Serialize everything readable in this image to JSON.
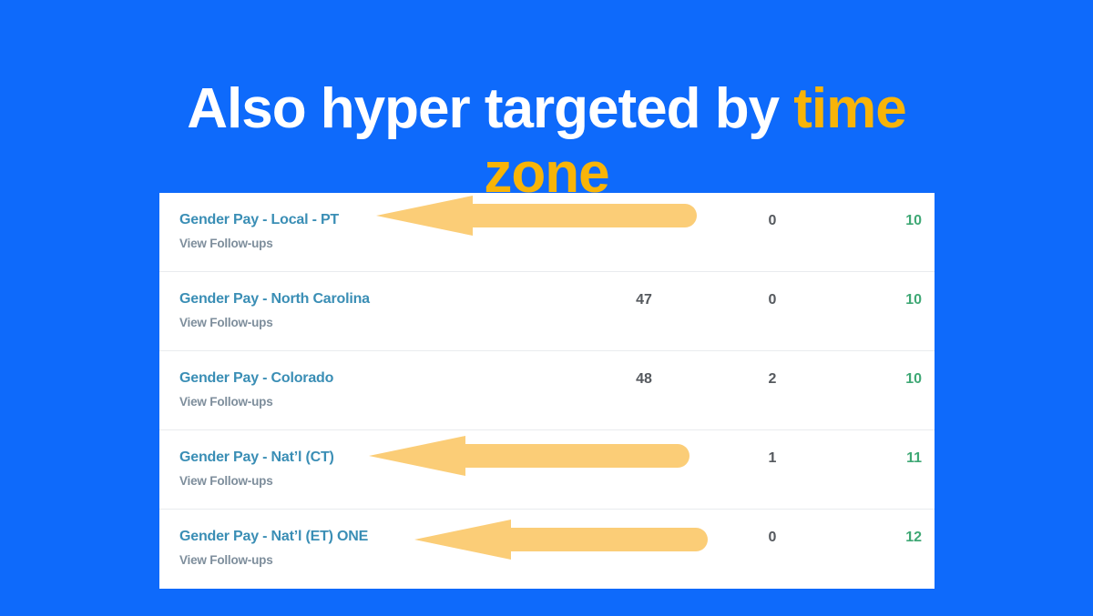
{
  "title": {
    "white": "Also hyper targeted by",
    "accent1": "time",
    "accent2": "zone"
  },
  "table": {
    "rows": [
      {
        "name": "Gender Pay - Local - PT",
        "sublink": "View Follow-ups",
        "col1": "",
        "col2": "0",
        "col3": "10",
        "arrow": true
      },
      {
        "name": "Gender Pay - North Carolina",
        "sublink": "View Follow-ups",
        "col1": "47",
        "col2": "0",
        "col3": "10",
        "arrow": false
      },
      {
        "name": "Gender Pay - Colorado",
        "sublink": "View Follow-ups",
        "col1": "48",
        "col2": "2",
        "col3": "10",
        "arrow": false
      },
      {
        "name": "Gender Pay - Nat’l (CT)",
        "sublink": "View Follow-ups",
        "col1": "",
        "col2": "1",
        "col3": "11",
        "arrow": true
      },
      {
        "name": "Gender Pay - Nat’l (ET) ONE",
        "sublink": "View Follow-ups",
        "col1": "",
        "col2": "0",
        "col3": "12",
        "arrow": true
      }
    ]
  },
  "icons": {
    "arrow": "left-arrow-annotation"
  },
  "colors": {
    "background": "#0e6afb",
    "title_text": "#ffffff",
    "accent_yellow": "#f8b408",
    "arrow_yellow": "#fbcd77",
    "panel_white": "#ffffff",
    "separator_gray": "#e9ebee",
    "link_teal": "#3a8eb5",
    "muted_gray": "#7e8e9c",
    "value_gray": "#55595e",
    "positive_green": "#3fa875"
  }
}
